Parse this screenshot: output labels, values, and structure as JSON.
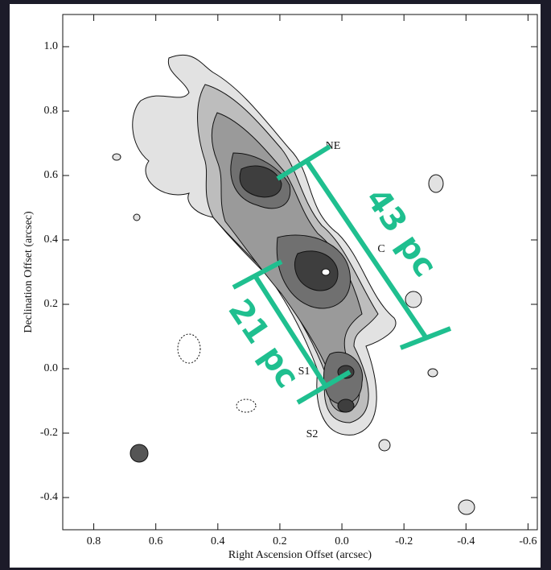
{
  "chart_data": {
    "type": "contour",
    "x_label": "Right Ascension Offset (arcsec)",
    "y_label": "Declination Offset (arcsec)",
    "xlim": [
      0.9,
      -0.63
    ],
    "ylim": [
      -0.5,
      1.1
    ],
    "xticks": [
      0.8,
      0.6,
      0.4,
      0.2,
      {
        "value": 0,
        "label": "0.0"
      },
      -0.2,
      -0.4,
      -0.6
    ],
    "yticks": [
      -0.4,
      -0.2,
      {
        "value": 0,
        "label": "0.0"
      },
      0.2,
      0.4,
      0.6,
      0.8,
      {
        "value": 1,
        "label": "1.0"
      }
    ],
    "annotations": [
      "NE",
      "C",
      "S1",
      "S2"
    ],
    "scale_labels": [
      "43 pc",
      "21 pc"
    ]
  }
}
